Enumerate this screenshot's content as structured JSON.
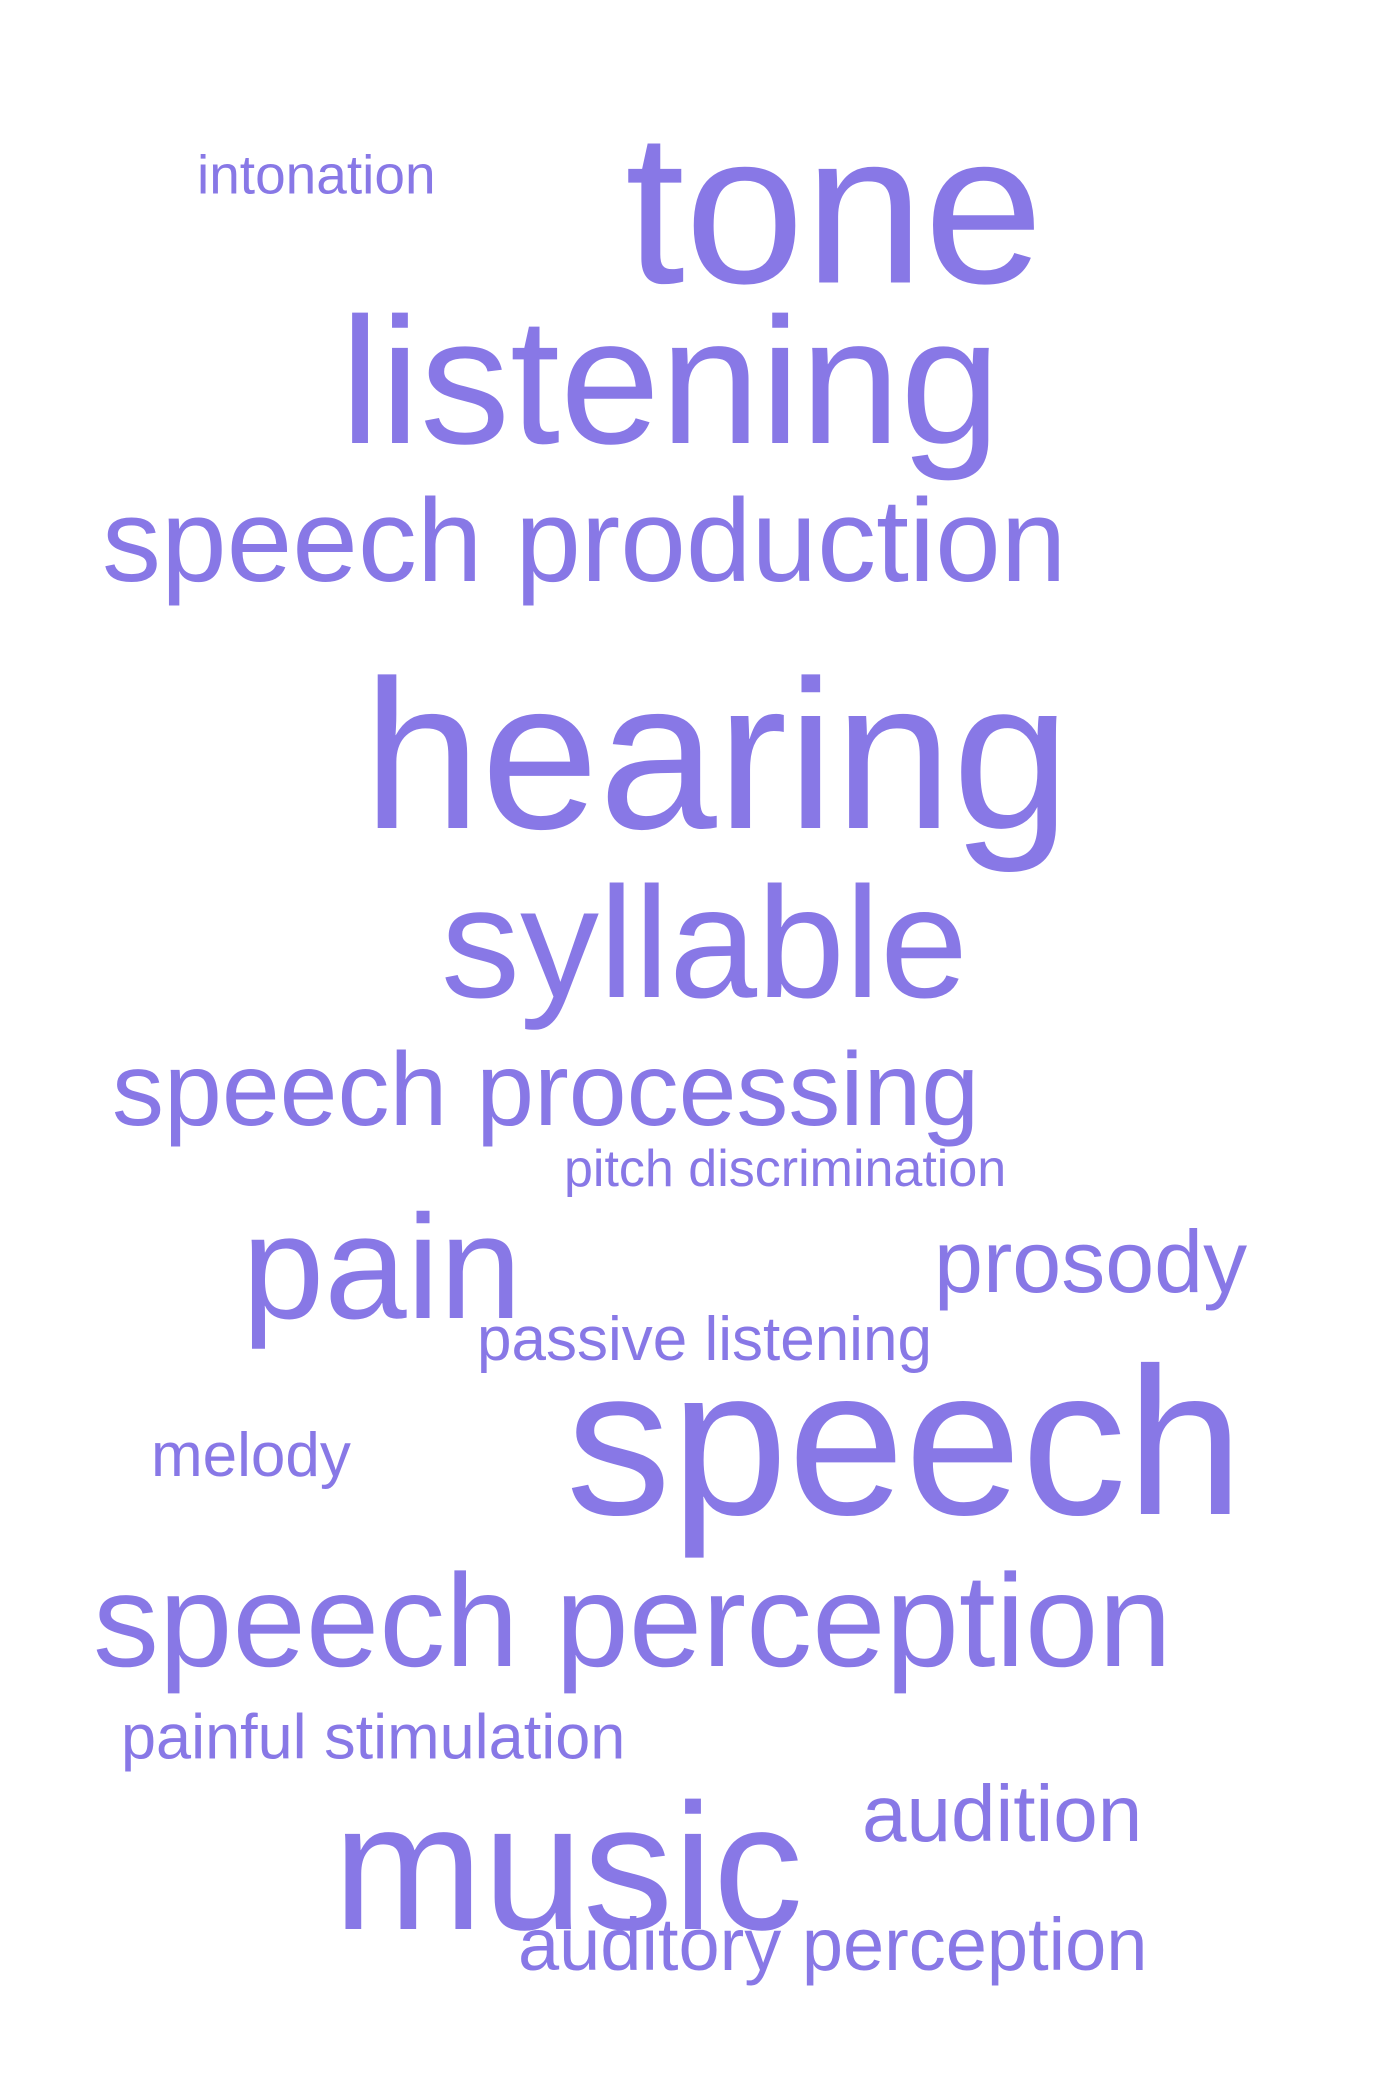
{
  "color": "#8878e6",
  "words": [
    {
      "id": "intonation",
      "text": "intonation"
    },
    {
      "id": "tone",
      "text": "tone"
    },
    {
      "id": "listening",
      "text": "listening"
    },
    {
      "id": "speech-production",
      "text": "speech production"
    },
    {
      "id": "hearing",
      "text": "hearing"
    },
    {
      "id": "syllable",
      "text": "syllable"
    },
    {
      "id": "speech-processing",
      "text": "speech processing"
    },
    {
      "id": "pitch-discrimination",
      "text": "pitch discrimination"
    },
    {
      "id": "pain",
      "text": "pain"
    },
    {
      "id": "prosody",
      "text": "prosody"
    },
    {
      "id": "passive-listening",
      "text": "passive listening"
    },
    {
      "id": "melody",
      "text": "melody"
    },
    {
      "id": "speech",
      "text": "speech"
    },
    {
      "id": "speech-perception",
      "text": "speech perception"
    },
    {
      "id": "painful-stimulation",
      "text": "painful stimulation"
    },
    {
      "id": "audition",
      "text": "audition"
    },
    {
      "id": "music",
      "text": "music"
    },
    {
      "id": "auditory-perception",
      "text": "auditory perception"
    }
  ]
}
